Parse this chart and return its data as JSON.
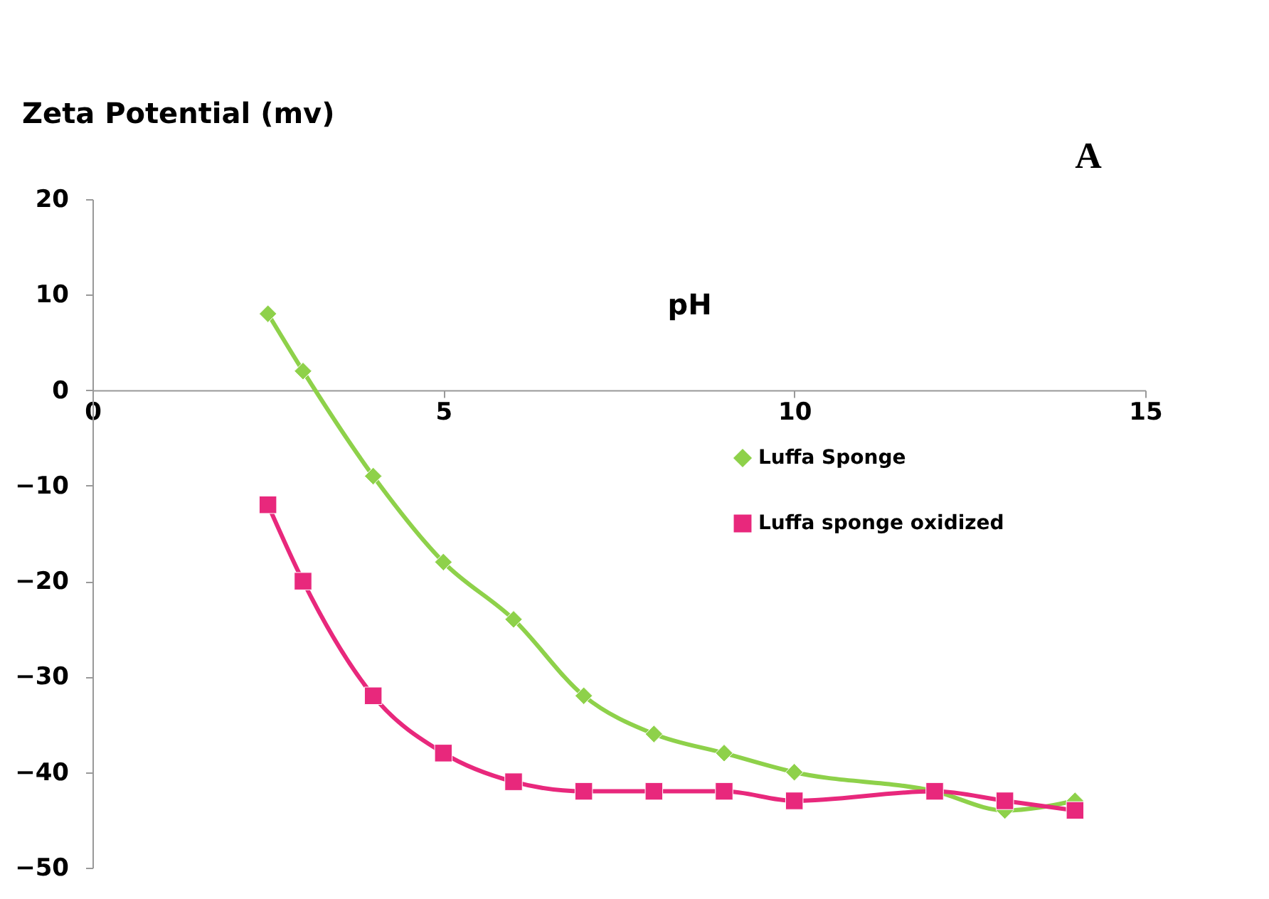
{
  "chart_data": {
    "type": "line",
    "xlabel": "pH",
    "ylabel": "Zeta Potential (mv)",
    "x": [
      2.5,
      3,
      4,
      5,
      6,
      7,
      8,
      9,
      10,
      12,
      13,
      14
    ],
    "series": [
      {
        "name": "Luffa Sponge",
        "color": "#8ed14a",
        "marker": "diamond",
        "values": [
          8,
          2,
          -9,
          -18,
          -24,
          -32,
          -36,
          -38,
          -40,
          -42,
          -44,
          -43
        ]
      },
      {
        "name": "Luffa sponge oxidized",
        "color": "#e8287c",
        "marker": "square",
        "values": [
          -12,
          -20,
          -32,
          -38,
          -41,
          -42,
          -42,
          -42,
          -43,
          -42,
          -43,
          -44
        ]
      }
    ],
    "xlim": [
      0,
      15
    ],
    "xticks": [
      0,
      5,
      10,
      15
    ],
    "ylim": [
      -50,
      20
    ],
    "yticks": [
      -50,
      -40,
      -30,
      -20,
      -10,
      0,
      10,
      20
    ],
    "grid": false,
    "legend": "right",
    "annotations": [
      "A"
    ]
  }
}
